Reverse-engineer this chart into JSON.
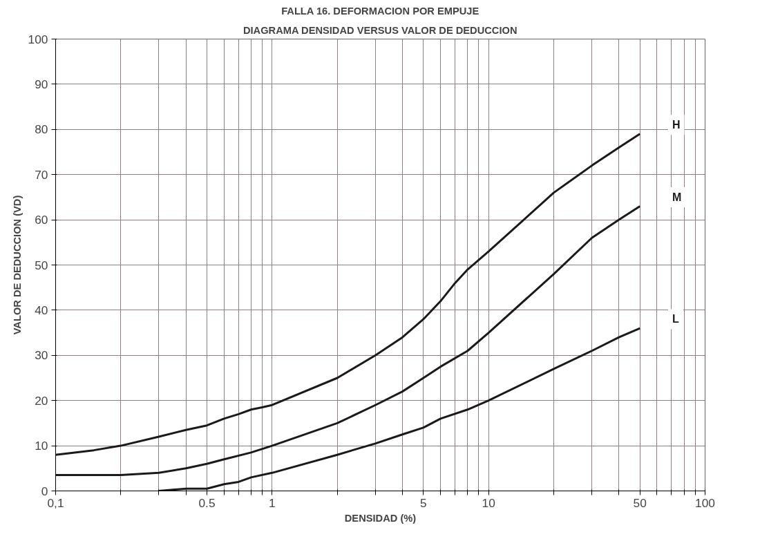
{
  "chart_data": {
    "type": "line",
    "title": "FALLA 16. DEFORMACION POR EMPUJE",
    "subtitle": "DIAGRAMA DENSIDAD VERSUS VALOR DE DEDUCCION",
    "xlabel": "DENSIDAD (%)",
    "ylabel": "VALOR DE DEDUCCION (VD)",
    "log": "x",
    "grid": true,
    "legend": false,
    "marker": "none",
    "line_style": "solid",
    "xlim": [
      0.1,
      100
    ],
    "ylim": [
      0,
      100
    ],
    "xticks": [
      {
        "value": 0.1,
        "label": "0,1"
      },
      {
        "value": 0.2,
        "label": null
      },
      {
        "value": 0.3,
        "label": null
      },
      {
        "value": 0.4,
        "label": null
      },
      {
        "value": 0.5,
        "label": "0.5"
      },
      {
        "value": 0.6,
        "label": null
      },
      {
        "value": 0.7,
        "label": null
      },
      {
        "value": 0.8,
        "label": null
      },
      {
        "value": 0.9,
        "label": null
      },
      1,
      {
        "value": 2,
        "label": null
      },
      {
        "value": 3,
        "label": null
      },
      {
        "value": 4,
        "label": null
      },
      5,
      {
        "value": 6,
        "label": null
      },
      {
        "value": 7,
        "label": null
      },
      {
        "value": 8,
        "label": null
      },
      {
        "value": 9,
        "label": null
      },
      10,
      {
        "value": 20,
        "label": null
      },
      {
        "value": 30,
        "label": null
      },
      {
        "value": 40,
        "label": null
      },
      50,
      {
        "value": 60,
        "label": null
      },
      {
        "value": 70,
        "label": null
      },
      {
        "value": 80,
        "label": null
      },
      {
        "value": 90,
        "label": null
      },
      100
    ],
    "yticks": [
      0,
      10,
      20,
      30,
      40,
      50,
      60,
      70,
      80,
      90,
      100
    ],
    "series": [
      {
        "name": "H",
        "color": "#1a1a1a",
        "x": [
          0.1,
          0.15,
          0.2,
          0.3,
          0.4,
          0.5,
          0.6,
          0.7,
          0.8,
          0.9,
          1,
          2,
          3,
          4,
          5,
          6,
          7,
          8,
          10,
          20,
          30,
          40,
          50
        ],
        "values": [
          8,
          9,
          10,
          12,
          13.5,
          14.5,
          16,
          17,
          18,
          18.5,
          19,
          25,
          30,
          34,
          38,
          42,
          46,
          49,
          53,
          66,
          72,
          76,
          79
        ]
      },
      {
        "name": "M",
        "color": "#1a1a1a",
        "x": [
          0.1,
          0.2,
          0.3,
          0.4,
          0.5,
          0.6,
          0.8,
          1,
          2,
          3,
          4,
          5,
          6,
          8,
          10,
          20,
          30,
          40,
          50
        ],
        "values": [
          3.5,
          3.5,
          4,
          5,
          6,
          7,
          8.5,
          10,
          15,
          19,
          22,
          25,
          27.5,
          31,
          35,
          48,
          56,
          60,
          63
        ]
      },
      {
        "name": "L",
        "color": "#1a1a1a",
        "x": [
          0.3,
          0.4,
          0.5,
          0.6,
          0.7,
          0.8,
          1,
          2,
          3,
          4,
          5,
          6,
          8,
          10,
          20,
          30,
          40,
          50
        ],
        "values": [
          0,
          0.5,
          0.5,
          1.5,
          2,
          3,
          4,
          8,
          10.5,
          12.5,
          14,
          16,
          18,
          20,
          27,
          31,
          34,
          36
        ]
      }
    ]
  }
}
